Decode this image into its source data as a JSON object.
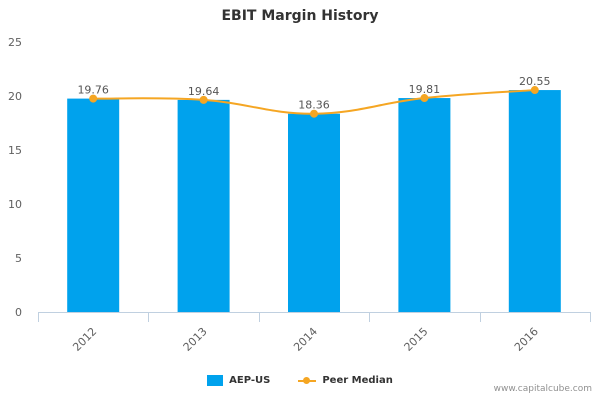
{
  "chart_data": {
    "type": "bar",
    "title": "EBIT Margin History",
    "xlabel": "",
    "ylabel": "",
    "categories": [
      "2012",
      "2013",
      "2014",
      "2015",
      "2016"
    ],
    "series": [
      {
        "name": "AEP-US",
        "kind": "bar",
        "color": "#00a2ed",
        "values": [
          19.76,
          19.64,
          18.36,
          19.81,
          20.55
        ]
      },
      {
        "name": "Peer Median",
        "kind": "line",
        "color": "#f5a623",
        "values": [
          19.76,
          19.64,
          18.36,
          19.81,
          20.55
        ]
      }
    ],
    "data_labels": [
      "19.76",
      "19.64",
      "18.36",
      "19.81",
      "20.55"
    ],
    "ylim": [
      0,
      25
    ],
    "yticks": [
      "0",
      "5",
      "10",
      "15",
      "20",
      "25"
    ],
    "grid": false,
    "legend_position": "bottom-center"
  },
  "watermark": "www.capitalcube.com"
}
